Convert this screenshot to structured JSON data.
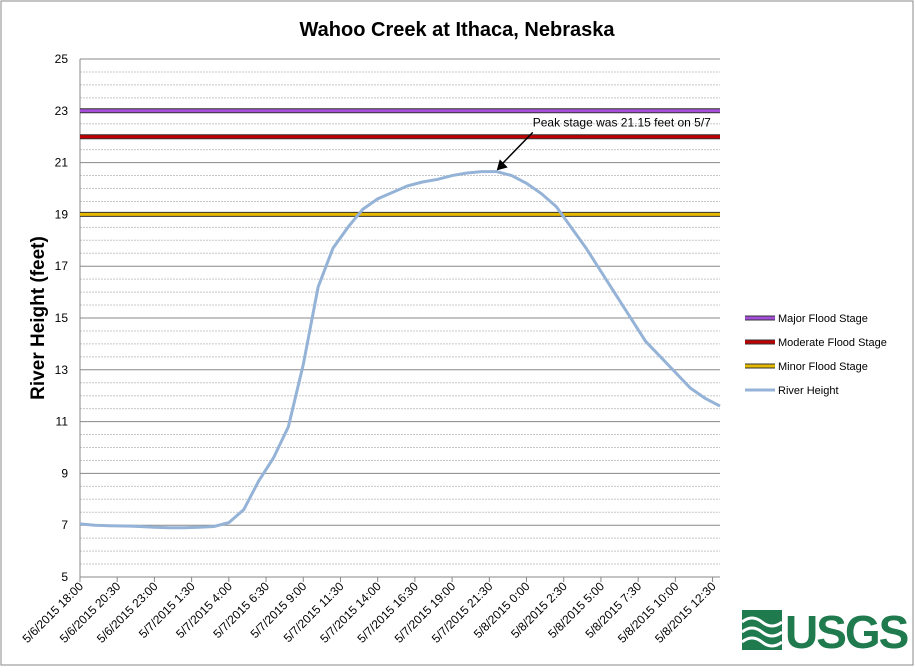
{
  "chart_data": {
    "type": "line",
    "title": "Wahoo Creek at Ithaca, Nebraska",
    "y_label": "River Height (feet)",
    "x": [
      "5/6/2015 18:00",
      "5/6/2015 19:00",
      "5/6/2015 20:00",
      "5/6/2015 21:00",
      "5/6/2015 22:00",
      "5/6/2015 23:00",
      "5/7/2015 0:00",
      "5/7/2015 1:00",
      "5/7/2015 2:00",
      "5/7/2015 3:00",
      "5/7/2015 4:00",
      "5/7/2015 5:00",
      "5/7/2015 6:00",
      "5/7/2015 7:00",
      "5/7/2015 8:00",
      "5/7/2015 9:00",
      "5/7/2015 10:00",
      "5/7/2015 11:00",
      "5/7/2015 12:00",
      "5/7/2015 13:00",
      "5/7/2015 14:00",
      "5/7/2015 15:00",
      "5/7/2015 16:00",
      "5/7/2015 17:00",
      "5/7/2015 18:00",
      "5/7/2015 19:00",
      "5/7/2015 20:00",
      "5/7/2015 21:00",
      "5/7/2015 22:00",
      "5/7/2015 23:00",
      "5/8/2015 0:00",
      "5/8/2015 1:00",
      "5/8/2015 2:00",
      "5/8/2015 3:00",
      "5/8/2015 4:00",
      "5/8/2015 5:00",
      "5/8/2015 6:00",
      "5/8/2015 7:00",
      "5/8/2015 8:00",
      "5/8/2015 9:00",
      "5/8/2015 10:00",
      "5/8/2015 11:00",
      "5/8/2015 12:00",
      "5/8/2015 13:00"
    ],
    "series": [
      {
        "name": "River Height",
        "color": "#95b3d7",
        "values": [
          7.05,
          7.0,
          6.98,
          6.97,
          6.95,
          6.92,
          6.9,
          6.9,
          6.92,
          6.95,
          7.1,
          7.6,
          8.7,
          9.6,
          10.8,
          13.2,
          16.2,
          17.7,
          18.5,
          19.2,
          19.6,
          19.85,
          20.1,
          20.25,
          20.35,
          20.5,
          20.6,
          20.65,
          20.65,
          20.5,
          20.2,
          19.8,
          19.3,
          18.5,
          17.7,
          16.8,
          15.9,
          15.0,
          14.1,
          13.5,
          12.9,
          12.3,
          11.9,
          11.6
        ]
      }
    ],
    "reference_lines": [
      {
        "name": "Major Flood Stage",
        "value": 23,
        "color": "#a64dd9"
      },
      {
        "name": "Moderate Flood Stage",
        "value": 22,
        "color": "#c00000"
      },
      {
        "name": "Minor Flood Stage",
        "value": 19,
        "color": "#e6b800"
      }
    ],
    "xlim": [
      "5/6/2015 18:00",
      "5/8/2015 13:00"
    ],
    "xticks": [
      "5/6/2015 18:00",
      "5/6/2015 20:30",
      "5/6/2015 23:00",
      "5/7/2015 1:30",
      "5/7/2015 4:00",
      "5/7/2015 6:30",
      "5/7/2015 9:00",
      "5/7/2015 11:30",
      "5/7/2015 14:00",
      "5/7/2015 16:30",
      "5/7/2015 19:00",
      "5/7/2015 21:30",
      "5/8/2015 0:00",
      "5/8/2015 2:30",
      "5/8/2015 5:00",
      "5/8/2015 7:30",
      "5/8/2015 10:00",
      "5/8/2015 12:30"
    ],
    "ylim": [
      5,
      25
    ],
    "yticks": [
      5,
      7,
      9,
      11,
      13,
      15,
      17,
      19,
      21,
      23,
      25
    ],
    "yminor": [
      5.5,
      6,
      6.5,
      7.5,
      8,
      8.5,
      9.5,
      10,
      10.5,
      11.5,
      12,
      12.5,
      13.5,
      14,
      14.5,
      15.5,
      16,
      16.5,
      17.5,
      18,
      18.5,
      19.5,
      20,
      20.5,
      21.5,
      22,
      22.5,
      23.5,
      24,
      24.5
    ],
    "grid": true,
    "legend": "right",
    "annotation": {
      "text": "Peak stage was 21.15 feet on 5/7",
      "x": "5/7/2015 22:00",
      "y": 20.7
    },
    "logo_text": "USGS"
  }
}
